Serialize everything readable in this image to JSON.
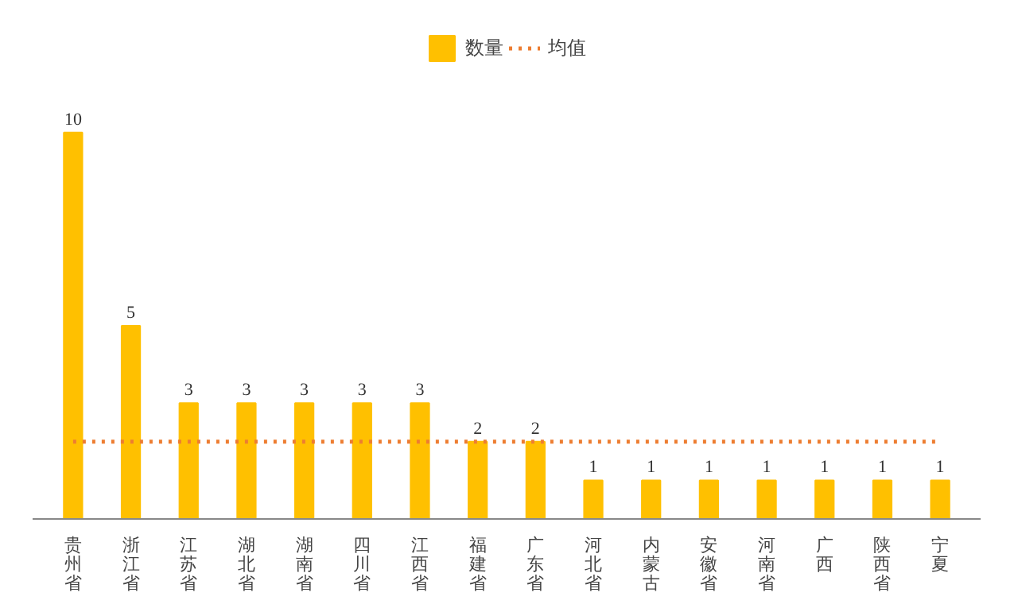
{
  "chart_data": {
    "type": "bar",
    "categories": [
      "贵州省",
      "浙江省",
      "江苏省",
      "湖北省",
      "湖南省",
      "四川省",
      "江西省",
      "福建省",
      "广东省",
      "河北省",
      "内蒙古",
      "安徽省",
      "河南省",
      "广西",
      "陕西省",
      "宁夏"
    ],
    "series": [
      {
        "name": "数量",
        "color": "#ffc000",
        "values": [
          10,
          5,
          3,
          3,
          3,
          3,
          3,
          2,
          2,
          1,
          1,
          1,
          1,
          1,
          1,
          1
        ],
        "value_labels": [
          "10",
          "5",
          "3",
          "3",
          "3",
          "3",
          "3",
          "2",
          "2",
          "1",
          "1",
          "1",
          "1",
          "1",
          "1",
          "1"
        ]
      },
      {
        "name": "均值",
        "type": "line",
        "color": "#ed7d31",
        "line_style": "dotted",
        "values": [
          2,
          2,
          2,
          2,
          2,
          2,
          2,
          2,
          2,
          2,
          2,
          2,
          2,
          2,
          2,
          2
        ]
      }
    ],
    "legend": "top",
    "tick_labels": "x",
    "grid": false
  }
}
